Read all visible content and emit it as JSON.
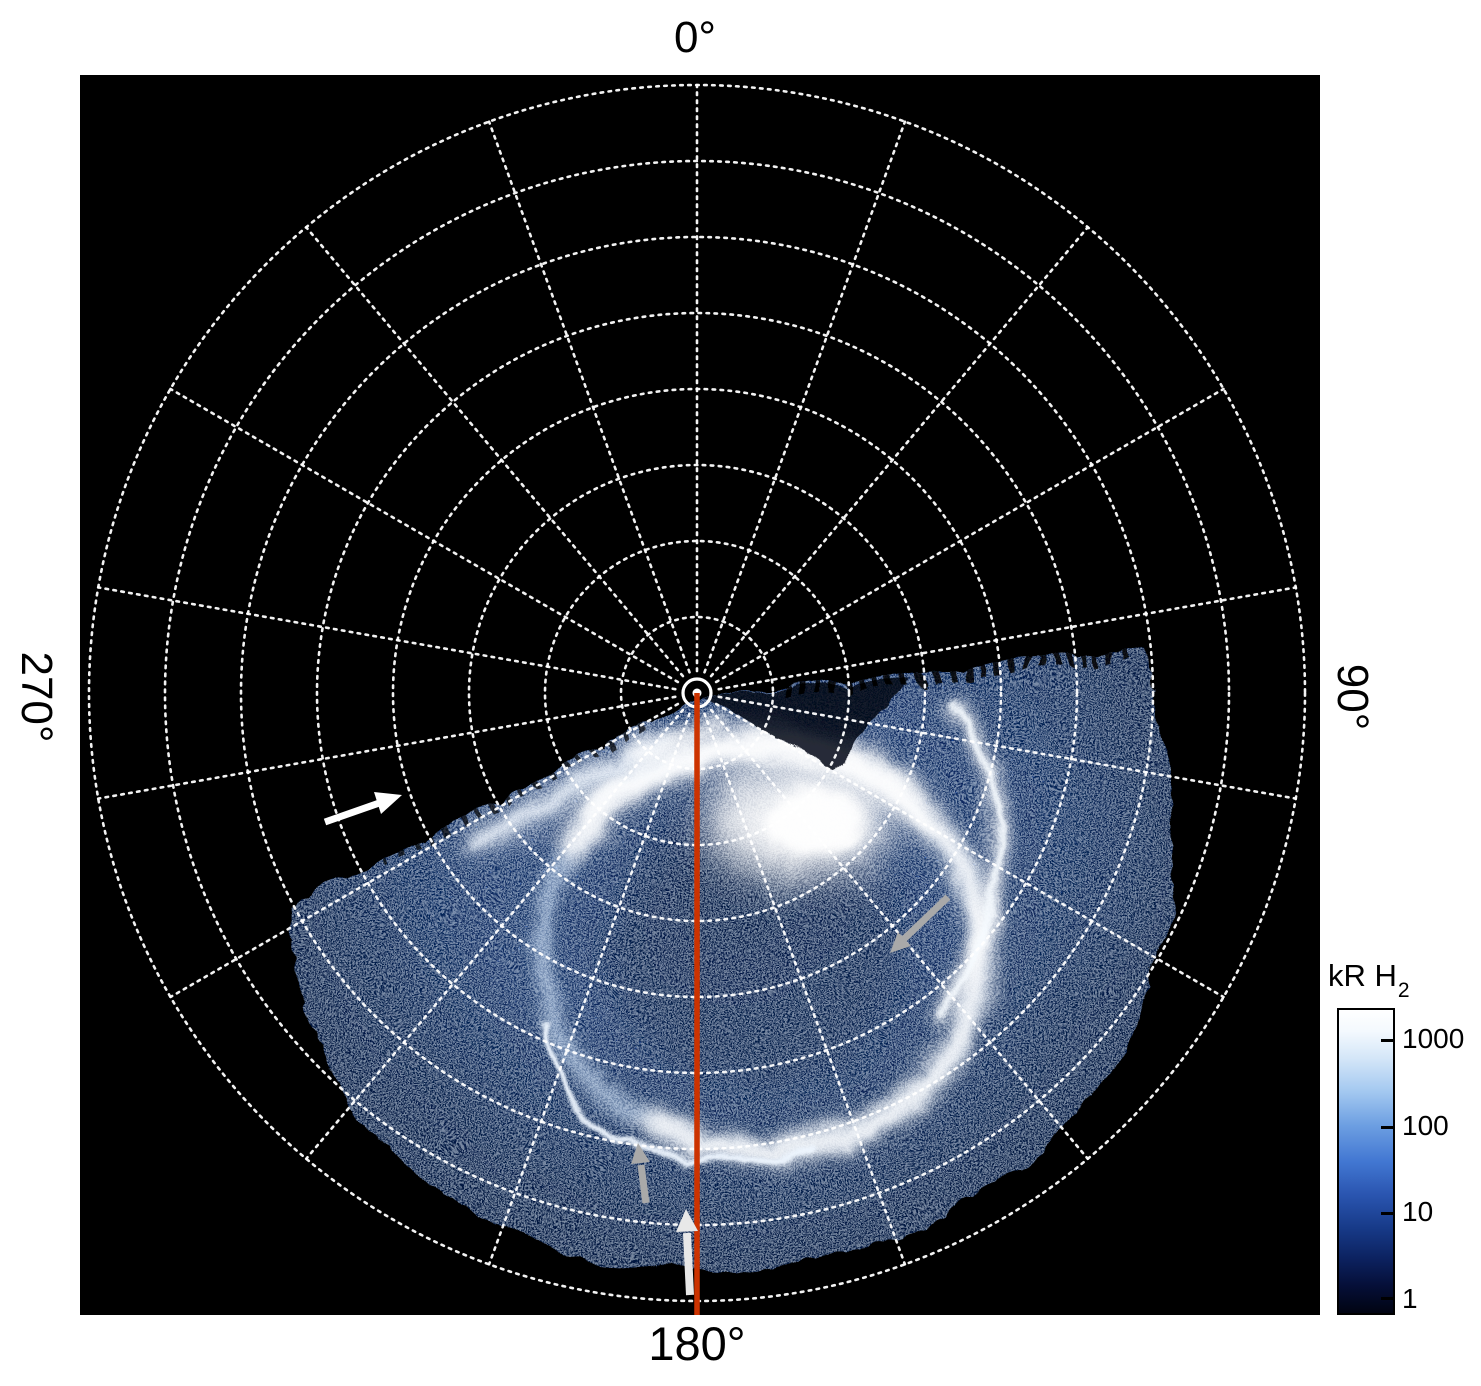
{
  "figure": {
    "angle_labels": {
      "top": "0°",
      "right": "90°",
      "bottom": "180°",
      "left": "270°"
    }
  },
  "colorbar": {
    "title_main": "kR H",
    "title_sub": "2",
    "tick_labels": [
      "1000",
      "100",
      "10",
      "1"
    ],
    "scale": "log",
    "range_min": 1,
    "range_max": 1000,
    "color_top": "#ffffff",
    "color_bottom": "#010412"
  },
  "chart_data": {
    "type": "heatmap",
    "projection": "polar",
    "quantity": "H2 auroral emission brightness",
    "unit": "kR",
    "color_scale": {
      "type": "log",
      "min": 1,
      "max": 1000,
      "colormap": "black-blue-white"
    },
    "angular_axis": {
      "labels_deg": [
        0,
        90,
        180,
        270
      ],
      "spoke_step_deg": 20,
      "zero_direction": "up",
      "direction": "clockwise"
    },
    "radial_axis": {
      "ring_count": 8
    },
    "data_coverage": {
      "azimuth_from_deg": 84,
      "azimuth_to_deg": 243,
      "note": "imaged swath spans clockwise from ~84° through 180° to ~243°; remainder of the disk is no-data (black)"
    },
    "features": [
      {
        "name": "main-auroral-oval",
        "description": "bright white partial oval of emission offset toward 180°, brightest along its top and 90°-side segments"
      },
      {
        "name": "bright-polar-patch",
        "description": "intense saturated white emission patch just below the pole near the 180° meridian"
      },
      {
        "name": "spiral-arm",
        "description": "bright curved emission arc on the 90° side of the oval"
      },
      {
        "name": "thin-equatorward-arc",
        "description": "narrow sharp arc equatorward of the main oval near 180°"
      },
      {
        "name": "diffuse-emission",
        "description": "speckled faint blue emission (~1-10 kR) filling the swath out to the edge of coverage"
      }
    ],
    "annotations": {
      "meridian": {
        "type": "line",
        "color": "#cc3300",
        "along_deg": 180,
        "from": "pole",
        "to": "outer edge"
      },
      "arrows": [
        {
          "name": "white-arrow",
          "color": "#ffffff",
          "location": "outside the swath boundary near 250°, pointing at the boundary"
        },
        {
          "name": "gray-arrow-right",
          "color": "#a9a9a9",
          "location": "pointing at the spiral arm on the 90° side of the oval"
        },
        {
          "name": "gray-arrow-bottom",
          "color": "#a9a9a9",
          "location": "pointing up at the thin arc near 180°"
        },
        {
          "name": "white-arrow-meridian",
          "color": "#e8e8e8",
          "location": "on the 180° meridian pointing poleward"
        }
      ]
    }
  }
}
